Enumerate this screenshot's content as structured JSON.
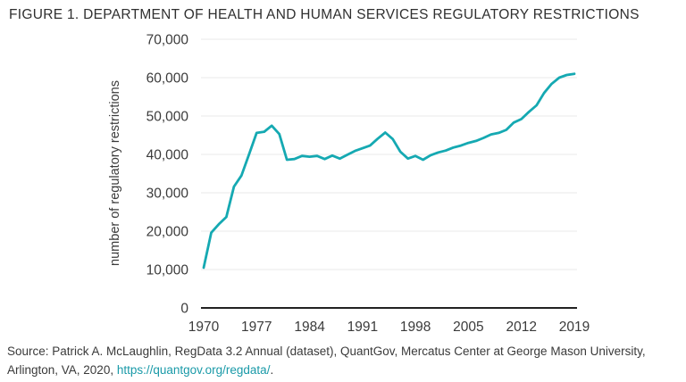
{
  "figure": {
    "title": "FIGURE 1. DEPARTMENT OF HEALTH AND HUMAN SERVICES REGULATORY RESTRICTIONS"
  },
  "source": {
    "line1": "Source: Patrick A. McLaughlin, RegData 3.2 Annual (dataset), QuantGov, Mercatus Center at George Mason University,",
    "line2_prefix": "Arlington, VA, 2020, ",
    "link_text": "https://quantgov.org/regdata/",
    "suffix": "."
  },
  "colors": {
    "line": "#15a9b2",
    "link": "#1a9aa8",
    "text": "#3b3b3b",
    "grid": "#eaeaea",
    "axis": "#222222"
  },
  "chart_data": {
    "type": "line",
    "title": "FIGURE 1. DEPARTMENT OF HEALTH AND HUMAN SERVICES REGULATORY RESTRICTIONS",
    "xlabel": "",
    "ylabel": "number of regulatory restrictions",
    "xlim": [
      1970,
      2019
    ],
    "ylim": [
      0,
      70000
    ],
    "x_ticks": [
      1970,
      1977,
      1984,
      1991,
      1998,
      2005,
      2012,
      2019
    ],
    "y_ticks": [
      0,
      10000,
      20000,
      30000,
      40000,
      50000,
      60000,
      70000
    ],
    "y_tick_labels": [
      "0",
      "10,000",
      "20,000",
      "30,000",
      "40,000",
      "50,000",
      "60,000",
      "70,000"
    ],
    "grid": "horizontal",
    "legend": "none",
    "series": [
      {
        "name": "HHS regulatory restrictions",
        "x": [
          1970,
          1971,
          1972,
          1973,
          1974,
          1975,
          1976,
          1977,
          1978,
          1979,
          1980,
          1981,
          1982,
          1983,
          1984,
          1985,
          1986,
          1987,
          1988,
          1989,
          1990,
          1991,
          1992,
          1993,
          1994,
          1995,
          1996,
          1997,
          1998,
          1999,
          2000,
          2001,
          2002,
          2003,
          2004,
          2005,
          2006,
          2007,
          2008,
          2009,
          2010,
          2011,
          2012,
          2013,
          2014,
          2015,
          2016,
          2017,
          2018,
          2019
        ],
        "values": [
          10500,
          19600,
          21800,
          23700,
          31600,
          34500,
          40000,
          45600,
          45900,
          47500,
          45300,
          38600,
          38800,
          39600,
          39400,
          39600,
          38800,
          39700,
          38900,
          39900,
          40900,
          41600,
          42300,
          44100,
          45700,
          44000,
          40700,
          38900,
          39600,
          38600,
          39800,
          40500,
          41000,
          41800,
          42300,
          43000,
          43500,
          44300,
          45200,
          45600,
          46400,
          48300,
          49200,
          51100,
          52800,
          56000,
          58400,
          60000,
          60700,
          61000
        ]
      }
    ]
  }
}
